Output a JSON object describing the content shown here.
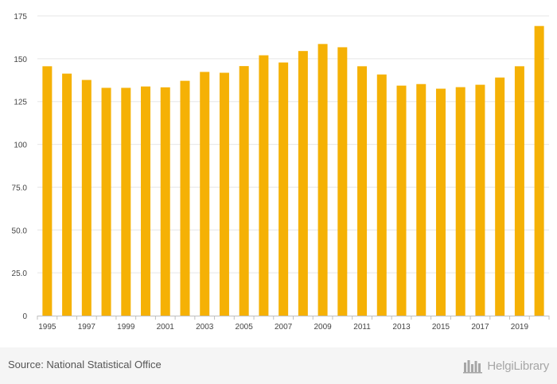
{
  "chart_data": {
    "type": "bar",
    "categories": [
      "1995",
      "1996",
      "1997",
      "1998",
      "1999",
      "2000",
      "2001",
      "2002",
      "2003",
      "2004",
      "2005",
      "2006",
      "2007",
      "2008",
      "2009",
      "2010",
      "2011",
      "2012",
      "2013",
      "2014",
      "2015",
      "2016",
      "2017",
      "2018",
      "2019",
      "2020"
    ],
    "x_tick_labels": [
      "1995",
      "1997",
      "1999",
      "2001",
      "2003",
      "2005",
      "2007",
      "2009",
      "2011",
      "2013",
      "2015",
      "2017",
      "2019"
    ],
    "values": [
      145.6,
      141.3,
      137.6,
      133.0,
      133.0,
      133.8,
      133.3,
      137.1,
      142.3,
      141.8,
      145.7,
      152.0,
      147.8,
      154.5,
      158.6,
      156.7,
      145.6,
      140.8,
      134.3,
      135.2,
      132.5,
      133.4,
      134.8,
      139.0,
      145.6,
      169.1
    ],
    "ylim": [
      0,
      175
    ],
    "y_ticks": [
      0,
      25,
      50,
      75,
      100,
      125,
      150,
      175
    ],
    "y_tick_labels": [
      "0",
      "25.0",
      "50.0",
      "75.0",
      "100",
      "125",
      "150",
      "175"
    ],
    "grid": true,
    "title": "",
    "xlabel": "",
    "ylabel": ""
  },
  "colors": {
    "bar": "#f5b105",
    "grid": "#e6e6e6",
    "axis": "#bfbfbf",
    "tick_text": "#444444"
  },
  "footer": {
    "source": "Source: National Statistical Office",
    "brand": "HelgiLibrary"
  }
}
